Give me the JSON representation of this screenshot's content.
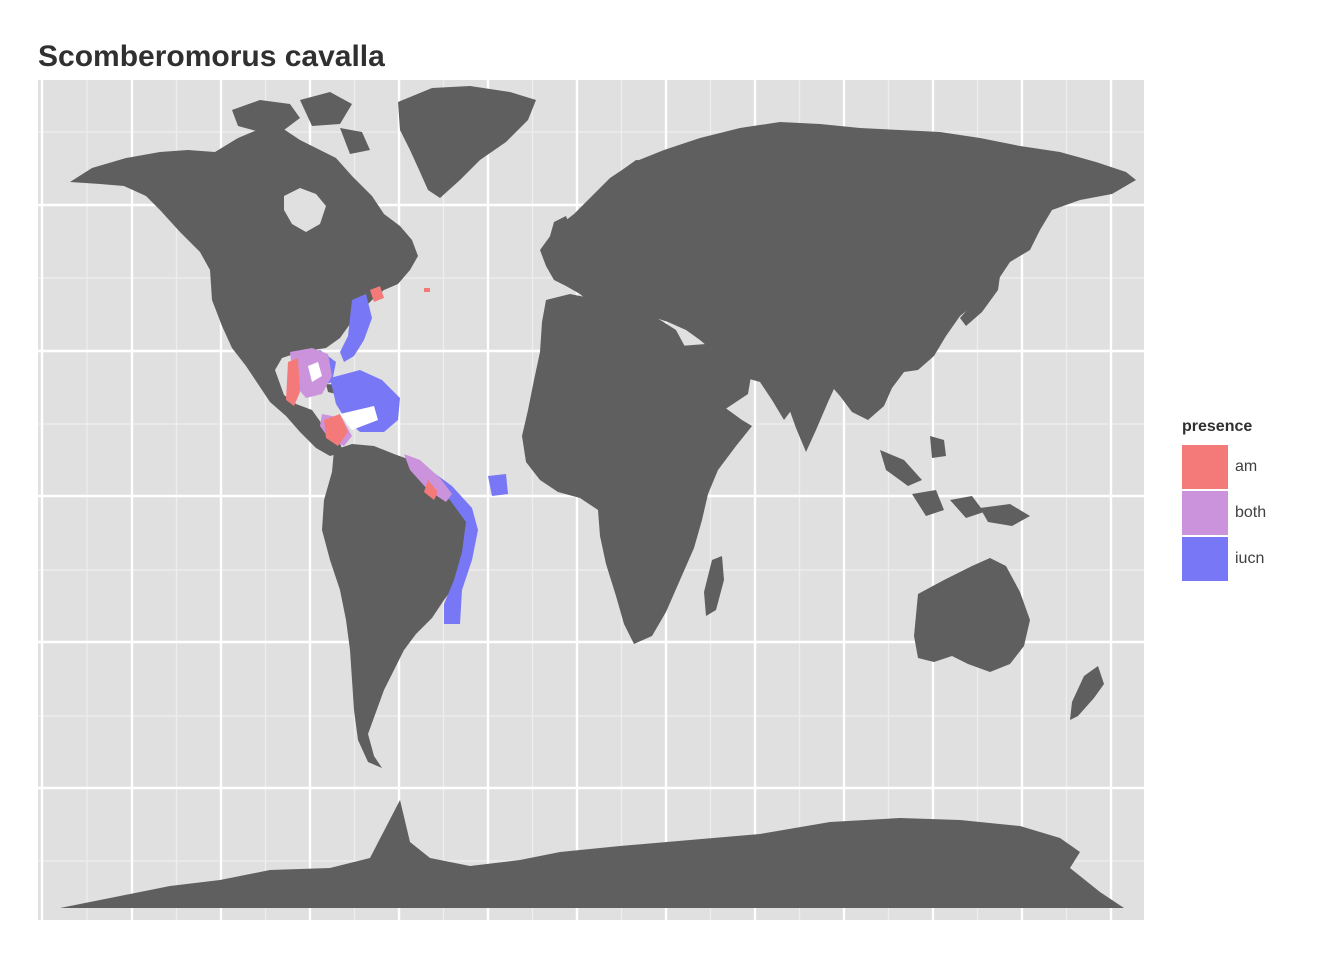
{
  "title": "Scomberomorus cavalla",
  "colors": {
    "panel_background": "#e0e0e0",
    "grid_major": "#ffffff",
    "grid_minor": "#eeeeee",
    "land": "#5f5f5f",
    "am": "#f47a7a",
    "both": "#cc93dd",
    "iucn": "#7878f6"
  },
  "legend": {
    "title": "presence",
    "position": "right",
    "items": [
      {
        "label": "am",
        "color": "#f47a7a"
      },
      {
        "label": "both",
        "color": "#cc93dd"
      },
      {
        "label": "iucn",
        "color": "#7878f6"
      }
    ]
  }
}
